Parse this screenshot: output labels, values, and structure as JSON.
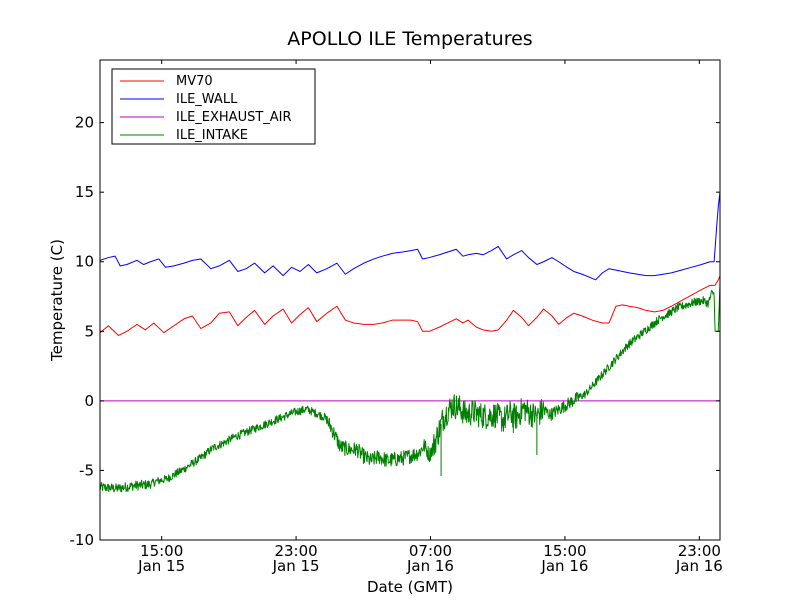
{
  "chart_data": {
    "type": "line",
    "title": "APOLLO ILE Temperatures",
    "xlabel": "Date (GMT)",
    "ylabel": "Temperature (C)",
    "x_unit": "hours since Jan 15 11:20 GMT",
    "xlim": [
      0,
      36.9
    ],
    "ylim": [
      -10,
      24.5
    ],
    "y_ticks": [
      {
        "value": -10,
        "label": "-10"
      },
      {
        "value": -5,
        "label": "-5"
      },
      {
        "value": 0,
        "label": "0"
      },
      {
        "value": 5,
        "label": "5"
      },
      {
        "value": 10,
        "label": "10"
      },
      {
        "value": 15,
        "label": "15"
      },
      {
        "value": 20,
        "label": "20"
      }
    ],
    "x_ticks": [
      {
        "value": 3.67,
        "time": "15:00",
        "date": "Jan 15"
      },
      {
        "value": 11.67,
        "time": "23:00",
        "date": "Jan 15"
      },
      {
        "value": 19.67,
        "time": "07:00",
        "date": "Jan 16"
      },
      {
        "value": 27.67,
        "time": "15:00",
        "date": "Jan 16"
      },
      {
        "value": 35.67,
        "time": "23:00",
        "date": "Jan 16"
      }
    ],
    "legend": {
      "position": "top-left",
      "entries": [
        "MV70",
        "ILE_WALL",
        "ILE_EXHAUST_AIR",
        "ILE_INTAKE"
      ]
    },
    "series": [
      {
        "name": "MV70",
        "color": "#ff0000",
        "points": [
          [
            0,
            4.9
          ],
          [
            0.5,
            5.4
          ],
          [
            1.1,
            4.7
          ],
          [
            1.6,
            5.0
          ],
          [
            2.2,
            5.5
          ],
          [
            2.7,
            5.1
          ],
          [
            3.2,
            5.6
          ],
          [
            3.8,
            4.9
          ],
          [
            4.4,
            5.4
          ],
          [
            5.0,
            5.9
          ],
          [
            5.5,
            6.1
          ],
          [
            6.0,
            5.2
          ],
          [
            6.6,
            5.6
          ],
          [
            7.1,
            6.3
          ],
          [
            7.7,
            6.4
          ],
          [
            8.2,
            5.4
          ],
          [
            8.7,
            6.0
          ],
          [
            9.2,
            6.5
          ],
          [
            9.8,
            5.5
          ],
          [
            10.3,
            6.1
          ],
          [
            10.9,
            6.6
          ],
          [
            11.4,
            5.6
          ],
          [
            11.9,
            6.2
          ],
          [
            12.4,
            6.7
          ],
          [
            12.9,
            5.7
          ],
          [
            13.5,
            6.3
          ],
          [
            14.1,
            6.8
          ],
          [
            14.6,
            5.8
          ],
          [
            15.1,
            5.6
          ],
          [
            15.7,
            5.5
          ],
          [
            16.3,
            5.5
          ],
          [
            16.8,
            5.6
          ],
          [
            17.4,
            5.8
          ],
          [
            18.0,
            5.8
          ],
          [
            18.5,
            5.8
          ],
          [
            18.9,
            5.7
          ],
          [
            19.2,
            5.0
          ],
          [
            19.6,
            5.0
          ],
          [
            20.2,
            5.3
          ],
          [
            20.7,
            5.6
          ],
          [
            21.2,
            5.9
          ],
          [
            21.6,
            5.6
          ],
          [
            21.9,
            5.8
          ],
          [
            22.4,
            5.3
          ],
          [
            22.8,
            5.1
          ],
          [
            23.3,
            5.0
          ],
          [
            23.7,
            5.1
          ],
          [
            24.2,
            5.8
          ],
          [
            24.6,
            6.5
          ],
          [
            25.1,
            6.0
          ],
          [
            25.5,
            5.4
          ],
          [
            26.0,
            6.0
          ],
          [
            26.4,
            6.6
          ],
          [
            26.9,
            6.1
          ],
          [
            27.3,
            5.5
          ],
          [
            27.8,
            6.0
          ],
          [
            28.2,
            6.3
          ],
          [
            28.7,
            6.1
          ],
          [
            29.3,
            5.8
          ],
          [
            29.9,
            5.6
          ],
          [
            30.3,
            5.6
          ],
          [
            30.7,
            6.8
          ],
          [
            31.1,
            6.9
          ],
          [
            31.5,
            6.8
          ],
          [
            32.0,
            6.7
          ],
          [
            32.5,
            6.5
          ],
          [
            33.0,
            6.4
          ],
          [
            33.5,
            6.5
          ],
          [
            34.0,
            6.8
          ],
          [
            34.6,
            7.2
          ],
          [
            35.2,
            7.6
          ],
          [
            35.8,
            8.0
          ],
          [
            36.3,
            8.3
          ],
          [
            36.6,
            8.3
          ],
          [
            36.8,
            8.7
          ],
          [
            36.9,
            9.0
          ]
        ]
      },
      {
        "name": "ILE_WALL",
        "color": "#0000ff",
        "points": [
          [
            0,
            10.1
          ],
          [
            0.5,
            10.3
          ],
          [
            0.9,
            10.4
          ],
          [
            1.2,
            9.7
          ],
          [
            1.6,
            9.8
          ],
          [
            2.2,
            10.1
          ],
          [
            2.6,
            9.8
          ],
          [
            3.0,
            10.0
          ],
          [
            3.5,
            10.2
          ],
          [
            3.9,
            9.6
          ],
          [
            4.4,
            9.7
          ],
          [
            5.0,
            9.9
          ],
          [
            5.5,
            10.1
          ],
          [
            6.0,
            10.2
          ],
          [
            6.6,
            9.5
          ],
          [
            7.1,
            9.7
          ],
          [
            7.7,
            10.1
          ],
          [
            8.2,
            9.3
          ],
          [
            8.7,
            9.5
          ],
          [
            9.2,
            9.9
          ],
          [
            9.8,
            9.2
          ],
          [
            10.3,
            9.7
          ],
          [
            10.9,
            9.0
          ],
          [
            11.4,
            9.6
          ],
          [
            11.9,
            9.3
          ],
          [
            12.4,
            9.8
          ],
          [
            12.9,
            9.2
          ],
          [
            13.5,
            9.5
          ],
          [
            14.1,
            9.9
          ],
          [
            14.6,
            9.1
          ],
          [
            15.1,
            9.5
          ],
          [
            15.7,
            9.9
          ],
          [
            16.3,
            10.2
          ],
          [
            16.8,
            10.4
          ],
          [
            17.4,
            10.6
          ],
          [
            18.0,
            10.7
          ],
          [
            18.5,
            10.8
          ],
          [
            18.9,
            10.9
          ],
          [
            19.2,
            10.2
          ],
          [
            19.6,
            10.3
          ],
          [
            20.2,
            10.5
          ],
          [
            20.7,
            10.7
          ],
          [
            21.2,
            10.9
          ],
          [
            21.6,
            10.4
          ],
          [
            21.9,
            10.5
          ],
          [
            22.4,
            10.6
          ],
          [
            22.8,
            10.5
          ],
          [
            23.3,
            10.8
          ],
          [
            23.7,
            11.1
          ],
          [
            24.2,
            10.2
          ],
          [
            24.6,
            10.5
          ],
          [
            25.1,
            10.8
          ],
          [
            25.5,
            10.3
          ],
          [
            26.0,
            9.8
          ],
          [
            26.4,
            10.0
          ],
          [
            26.9,
            10.3
          ],
          [
            27.3,
            10.0
          ],
          [
            27.8,
            9.6
          ],
          [
            28.2,
            9.3
          ],
          [
            28.7,
            9.1
          ],
          [
            29.3,
            8.8
          ],
          [
            29.5,
            8.7
          ],
          [
            29.9,
            9.2
          ],
          [
            30.3,
            9.5
          ],
          [
            30.7,
            9.4
          ],
          [
            31.1,
            9.3
          ],
          [
            31.5,
            9.2
          ],
          [
            32.0,
            9.1
          ],
          [
            32.5,
            9.0
          ],
          [
            33.0,
            9.0
          ],
          [
            33.5,
            9.1
          ],
          [
            34.0,
            9.2
          ],
          [
            34.6,
            9.4
          ],
          [
            35.2,
            9.6
          ],
          [
            35.8,
            9.8
          ],
          [
            36.3,
            10.0
          ],
          [
            36.55,
            10.0
          ],
          [
            36.7,
            12.5
          ],
          [
            36.8,
            14.0
          ],
          [
            36.9,
            15.0
          ]
        ]
      },
      {
        "name": "ILE_EXHAUST_AIR",
        "color": "#bf00bf",
        "points": [
          [
            0,
            0.0
          ],
          [
            36.9,
            0.0
          ]
        ]
      },
      {
        "name": "ILE_INTAKE",
        "color": "#008000",
        "points": [
          [
            0,
            -6.2
          ],
          [
            1.0,
            -6.3
          ],
          [
            2.0,
            -6.1
          ],
          [
            3.0,
            -6.0
          ],
          [
            3.3,
            -5.8
          ],
          [
            4.0,
            -5.6
          ],
          [
            5.0,
            -4.9
          ],
          [
            6.0,
            -4.1
          ],
          [
            6.7,
            -3.4
          ],
          [
            7.4,
            -3.0
          ],
          [
            8.0,
            -2.6
          ],
          [
            9.0,
            -2.1
          ],
          [
            10.0,
            -1.6
          ],
          [
            11.0,
            -1.1
          ],
          [
            11.6,
            -0.8
          ],
          [
            12.3,
            -0.6
          ],
          [
            12.9,
            -0.9
          ],
          [
            13.4,
            -1.2
          ],
          [
            13.8,
            -2.0
          ],
          [
            14.3,
            -3.3
          ],
          [
            14.8,
            -3.5
          ],
          [
            15.3,
            -3.5
          ],
          [
            15.6,
            -3.9
          ],
          [
            16.1,
            -4.3
          ],
          [
            16.6,
            -4.0
          ],
          [
            17.1,
            -4.3
          ],
          [
            17.6,
            -4.2
          ],
          [
            18.1,
            -4.1
          ],
          [
            18.6,
            -3.9
          ],
          [
            19.0,
            -3.7
          ],
          [
            19.3,
            -3.2
          ],
          [
            19.6,
            -3.9
          ],
          [
            19.9,
            -3.1
          ],
          [
            20.1,
            -2.4
          ],
          [
            20.4,
            -1.3
          ],
          [
            20.7,
            -0.7
          ],
          [
            21.0,
            -0.3
          ],
          [
            21.4,
            -0.5
          ],
          [
            21.8,
            -1.0
          ],
          [
            22.2,
            -0.8
          ],
          [
            22.6,
            -1.0
          ],
          [
            23.0,
            -1.1
          ],
          [
            23.5,
            -1.0
          ],
          [
            24.0,
            -1.4
          ],
          [
            24.4,
            -0.9
          ],
          [
            24.8,
            -1.2
          ],
          [
            25.2,
            -0.5
          ],
          [
            25.6,
            -0.9
          ],
          [
            26.0,
            -1.1
          ],
          [
            26.4,
            -0.6
          ],
          [
            26.8,
            -1.0
          ],
          [
            27.2,
            -0.7
          ],
          [
            27.6,
            -0.4
          ],
          [
            28.0,
            -0.1
          ],
          [
            28.4,
            0.2
          ],
          [
            28.9,
            0.5
          ],
          [
            29.4,
            1.2
          ],
          [
            29.9,
            1.9
          ],
          [
            30.4,
            2.6
          ],
          [
            30.9,
            3.3
          ],
          [
            31.4,
            4.0
          ],
          [
            31.9,
            4.5
          ],
          [
            32.4,
            5.0
          ],
          [
            32.9,
            5.5
          ],
          [
            33.4,
            6.0
          ],
          [
            33.9,
            6.3
          ],
          [
            34.4,
            6.7
          ],
          [
            34.9,
            6.9
          ],
          [
            35.4,
            7.1
          ],
          [
            35.9,
            7.2
          ],
          [
            36.2,
            7.0
          ],
          [
            36.4,
            7.7
          ],
          [
            36.55,
            7.8
          ],
          [
            36.6,
            5.0
          ],
          [
            36.8,
            5.0
          ],
          [
            36.9,
            8.5
          ]
        ]
      }
    ]
  }
}
